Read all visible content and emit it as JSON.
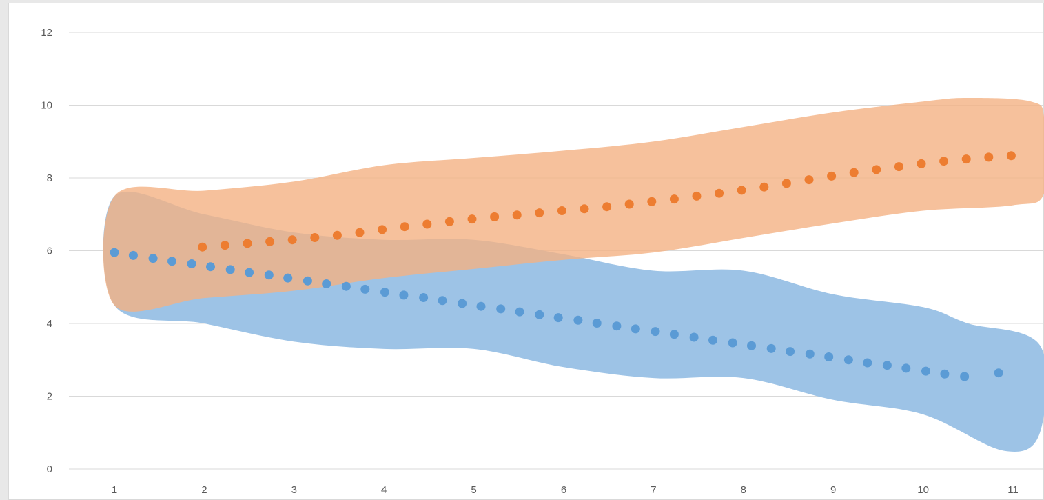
{
  "chart_data": {
    "type": "scatter",
    "title": "",
    "xlabel": "",
    "ylabel": "",
    "xlim": [
      0.5,
      11.35
    ],
    "ylim": [
      0,
      12
    ],
    "grid": "horizontal",
    "x_ticks": [
      "1",
      "2",
      "3",
      "4",
      "5",
      "6",
      "7",
      "8",
      "9",
      "10",
      "11"
    ],
    "y_ticks": [
      "0",
      "2",
      "4",
      "6",
      "8",
      "10",
      "12"
    ],
    "colors": {
      "band_blue": "#9dc3e6",
      "band_orange": "#f4b183",
      "dots_blue": "#5b9bd5",
      "dots_orange": "#ed7d31",
      "gridline": "#d9d9d9",
      "overlap": "#c0957c"
    },
    "series": [
      {
        "color_key": "blue",
        "dots": [
          [
            1.0,
            5.95
          ],
          [
            1.21,
            5.87
          ],
          [
            1.43,
            5.79
          ],
          [
            1.64,
            5.71
          ],
          [
            1.86,
            5.64
          ],
          [
            2.07,
            5.56
          ],
          [
            2.29,
            5.48
          ],
          [
            2.5,
            5.4
          ],
          [
            2.72,
            5.33
          ],
          [
            2.93,
            5.25
          ],
          [
            3.15,
            5.17
          ],
          [
            3.36,
            5.09
          ],
          [
            3.58,
            5.02
          ],
          [
            3.79,
            4.94
          ],
          [
            4.01,
            4.86
          ],
          [
            4.22,
            4.78
          ],
          [
            4.44,
            4.71
          ],
          [
            4.65,
            4.63
          ],
          [
            4.87,
            4.55
          ],
          [
            5.08,
            4.47
          ],
          [
            5.3,
            4.4
          ],
          [
            5.51,
            4.32
          ],
          [
            5.73,
            4.24
          ],
          [
            5.94,
            4.16
          ],
          [
            6.16,
            4.09
          ],
          [
            6.37,
            4.01
          ],
          [
            6.59,
            3.93
          ],
          [
            6.8,
            3.85
          ],
          [
            7.02,
            3.78
          ],
          [
            7.23,
            3.7
          ],
          [
            7.45,
            3.62
          ],
          [
            7.66,
            3.54
          ],
          [
            7.88,
            3.47
          ],
          [
            8.09,
            3.39
          ],
          [
            8.31,
            3.31
          ],
          [
            8.52,
            3.23
          ],
          [
            8.74,
            3.16
          ],
          [
            8.95,
            3.08
          ],
          [
            9.17,
            3.0
          ],
          [
            9.38,
            2.92
          ],
          [
            9.6,
            2.85
          ],
          [
            9.81,
            2.77
          ],
          [
            10.03,
            2.69
          ],
          [
            10.24,
            2.61
          ],
          [
            10.46,
            2.54
          ],
          [
            10.84,
            2.64
          ]
        ],
        "band_upper": [
          [
            1.0,
            7.5
          ],
          [
            2.0,
            7.0
          ],
          [
            3.0,
            6.5
          ],
          [
            4.0,
            6.3
          ],
          [
            5.0,
            6.3
          ],
          [
            6.0,
            5.9
          ],
          [
            7.0,
            5.45
          ],
          [
            8.0,
            5.45
          ],
          [
            9.0,
            4.8
          ],
          [
            10.0,
            4.45
          ],
          [
            10.5,
            4.0
          ],
          [
            11.3,
            3.4
          ]
        ],
        "band_lower": [
          [
            11.3,
            1.0
          ],
          [
            10.9,
            0.5
          ],
          [
            10.0,
            1.5
          ],
          [
            9.0,
            1.9
          ],
          [
            8.0,
            2.5
          ],
          [
            7.0,
            2.5
          ],
          [
            6.0,
            2.8
          ],
          [
            5.0,
            3.3
          ],
          [
            4.0,
            3.3
          ],
          [
            3.0,
            3.5
          ],
          [
            2.0,
            4.0
          ],
          [
            1.0,
            4.5
          ]
        ]
      },
      {
        "color_key": "orange",
        "dots": [
          [
            1.98,
            6.1
          ],
          [
            2.23,
            6.15
          ],
          [
            2.48,
            6.2
          ],
          [
            2.73,
            6.25
          ],
          [
            2.98,
            6.3
          ],
          [
            3.23,
            6.36
          ],
          [
            3.48,
            6.42
          ],
          [
            3.73,
            6.5
          ],
          [
            3.98,
            6.58
          ],
          [
            4.23,
            6.66
          ],
          [
            4.48,
            6.73
          ],
          [
            4.73,
            6.8
          ],
          [
            4.98,
            6.87
          ],
          [
            5.23,
            6.93
          ],
          [
            5.48,
            6.98
          ],
          [
            5.73,
            7.04
          ],
          [
            5.98,
            7.1
          ],
          [
            6.23,
            7.15
          ],
          [
            6.48,
            7.21
          ],
          [
            6.73,
            7.28
          ],
          [
            6.98,
            7.35
          ],
          [
            7.23,
            7.42
          ],
          [
            7.48,
            7.5
          ],
          [
            7.73,
            7.58
          ],
          [
            7.98,
            7.66
          ],
          [
            8.23,
            7.75
          ],
          [
            8.48,
            7.85
          ],
          [
            8.73,
            7.95
          ],
          [
            8.98,
            8.05
          ],
          [
            9.23,
            8.15
          ],
          [
            9.48,
            8.23
          ],
          [
            9.73,
            8.31
          ],
          [
            9.98,
            8.39
          ],
          [
            10.23,
            8.46
          ],
          [
            10.48,
            8.52
          ],
          [
            10.73,
            8.57
          ],
          [
            10.98,
            8.61
          ]
        ],
        "band_upper": [
          [
            1.0,
            7.5
          ],
          [
            2.0,
            7.65
          ],
          [
            3.0,
            7.9
          ],
          [
            4.0,
            8.35
          ],
          [
            5.0,
            8.55
          ],
          [
            6.0,
            8.75
          ],
          [
            7.0,
            9.0
          ],
          [
            8.0,
            9.4
          ],
          [
            9.0,
            9.8
          ],
          [
            10.0,
            10.1
          ],
          [
            10.5,
            10.2
          ],
          [
            11.2,
            10.1
          ],
          [
            11.35,
            9.6
          ]
        ],
        "band_lower": [
          [
            11.35,
            7.6
          ],
          [
            11.0,
            7.25
          ],
          [
            10.0,
            7.1
          ],
          [
            9.0,
            6.75
          ],
          [
            8.0,
            6.35
          ],
          [
            7.0,
            5.95
          ],
          [
            6.0,
            5.75
          ],
          [
            5.0,
            5.5
          ],
          [
            4.0,
            5.25
          ],
          [
            3.0,
            4.9
          ],
          [
            2.0,
            4.7
          ],
          [
            1.0,
            4.5
          ]
        ]
      }
    ]
  }
}
